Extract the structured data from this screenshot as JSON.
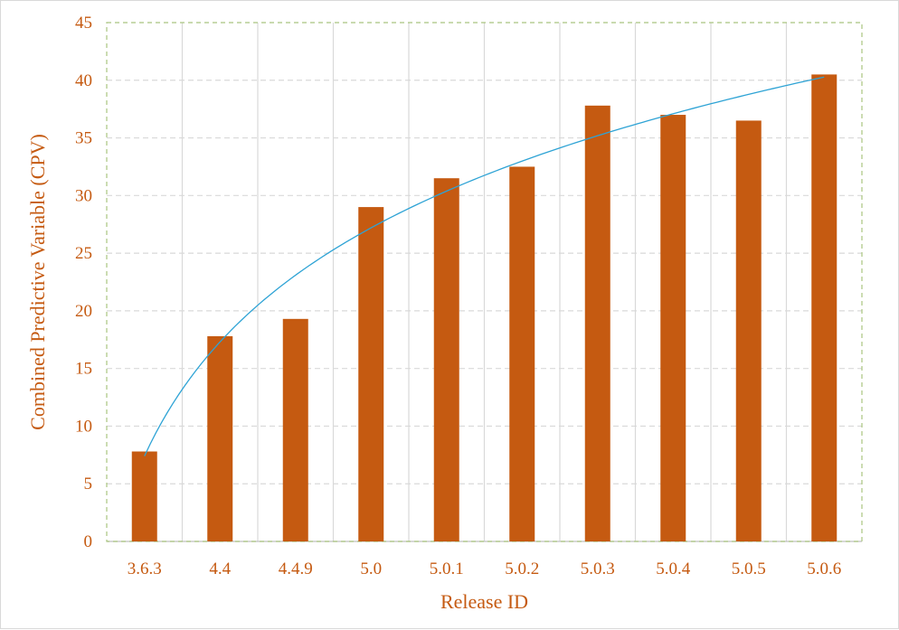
{
  "chart_data": {
    "type": "bar",
    "title": "",
    "xlabel": "Release ID",
    "ylabel": "Combined Predictive Variable (CPV)",
    "categories": [
      "3.6.3",
      "4.4",
      "4.4.9",
      "5.0",
      "5.0.1",
      "5.0.2",
      "5.0.3",
      "5.0.4",
      "5.0.5",
      "5.0.6"
    ],
    "series": [
      {
        "values": [
          7.8,
          17.8,
          19.3,
          29.0,
          31.5,
          32.5,
          37.8,
          37.0,
          36.5,
          40.5
        ]
      }
    ],
    "trendline": {
      "type": "logarithmic"
    },
    "ylim": [
      0,
      45
    ],
    "yticks": [
      "0",
      "5",
      "10",
      "15",
      "20",
      "25",
      "30",
      "35",
      "40",
      "45"
    ],
    "grid": true,
    "legend": "none",
    "colors": {
      "bar": "#c55a11",
      "trendline": "#2ea3d5",
      "text": "#c55a11",
      "grid_vertical": "#d9d9d9",
      "grid_horizontal": "#d9d9d9",
      "plot_border": "#a9c47f"
    }
  }
}
